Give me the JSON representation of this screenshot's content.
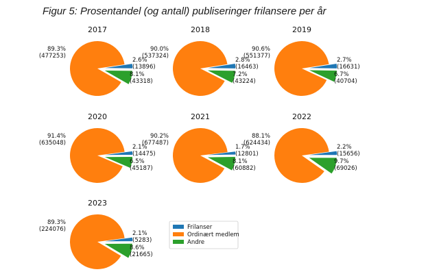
{
  "figure_title": "Figur 5: Prosentandel (og antall) publiseringer frilansere per år",
  "chart_data": {
    "type": "pie",
    "legend": {
      "placement": "bottom-center",
      "entries": [
        "Frilanser",
        "Ordinært medlem",
        "Andre"
      ]
    },
    "colors": [
      "#1f77b4",
      "#ff7f0e",
      "#2ca02c"
    ],
    "charts": [
      {
        "title": "2017",
        "values": [
          13896,
          477253,
          43318
        ],
        "percents": [
          "2.6%",
          "89.3%",
          "8.1%"
        ],
        "counts": [
          "(13896)",
          "(477253)",
          "(43318)"
        ]
      },
      {
        "title": "2018",
        "values": [
          16463,
          537324,
          43224
        ],
        "percents": [
          "2.8%",
          "90.0%",
          "7.2%"
        ],
        "counts": [
          "(16463)",
          "(537324)",
          "(43224)"
        ]
      },
      {
        "title": "2019",
        "values": [
          16631,
          551377,
          40704
        ],
        "percents": [
          "2.7%",
          "90.6%",
          "6.7%"
        ],
        "counts": [
          "(16631)",
          "(551377)",
          "(40704)"
        ]
      },
      {
        "title": "2020",
        "values": [
          14475,
          635048,
          45187
        ],
        "percents": [
          "2.1%",
          "91.4%",
          "6.5%"
        ],
        "counts": [
          "(14475)",
          "(635048)",
          "(45187)"
        ]
      },
      {
        "title": "2021",
        "values": [
          12801,
          677487,
          60882
        ],
        "percents": [
          "1.7%",
          "90.2%",
          "8.1%"
        ],
        "counts": [
          "(12801)",
          "(677487)",
          "(60882)"
        ]
      },
      {
        "title": "2022",
        "values": [
          15656,
          624434,
          69026
        ],
        "percents": [
          "2.2%",
          "88.1%",
          "9.7%"
        ],
        "counts": [
          "(15656)",
          "(624434)",
          "(69026)"
        ]
      },
      {
        "title": "2023",
        "values": [
          5283,
          224076,
          21665
        ],
        "percents": [
          "2.1%",
          "89.3%",
          "8.6%"
        ],
        "counts": [
          "(5283)",
          "(224076)",
          "(21665)"
        ]
      }
    ]
  }
}
